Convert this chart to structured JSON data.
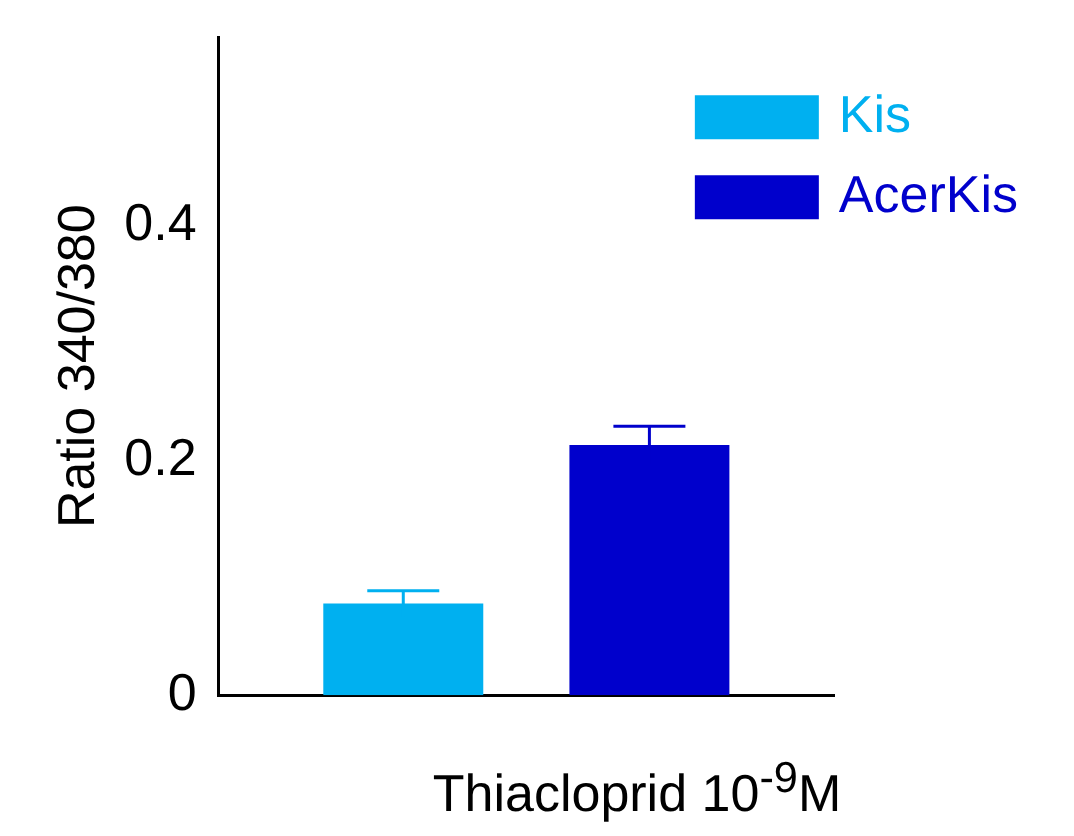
{
  "chart_data": {
    "type": "bar",
    "xlabel": "Thiacloprid 10$^{-9}$M",
    "ylabel": "Ratio 340/380",
    "categories": [
      null
    ],
    "series": [
      {
        "name": "Kis",
        "color": "#00b0f0",
        "values": [
          0.078
        ],
        "errors": [
          0.011
        ]
      },
      {
        "name": "AcerKis",
        "color": "#0000cc",
        "values": [
          0.213
        ],
        "errors": [
          0.016
        ]
      }
    ],
    "ylim": [
      0,
      0.56
    ],
    "yticks": [
      0,
      0.2,
      0.4
    ],
    "grid": false,
    "legend": "top right"
  }
}
